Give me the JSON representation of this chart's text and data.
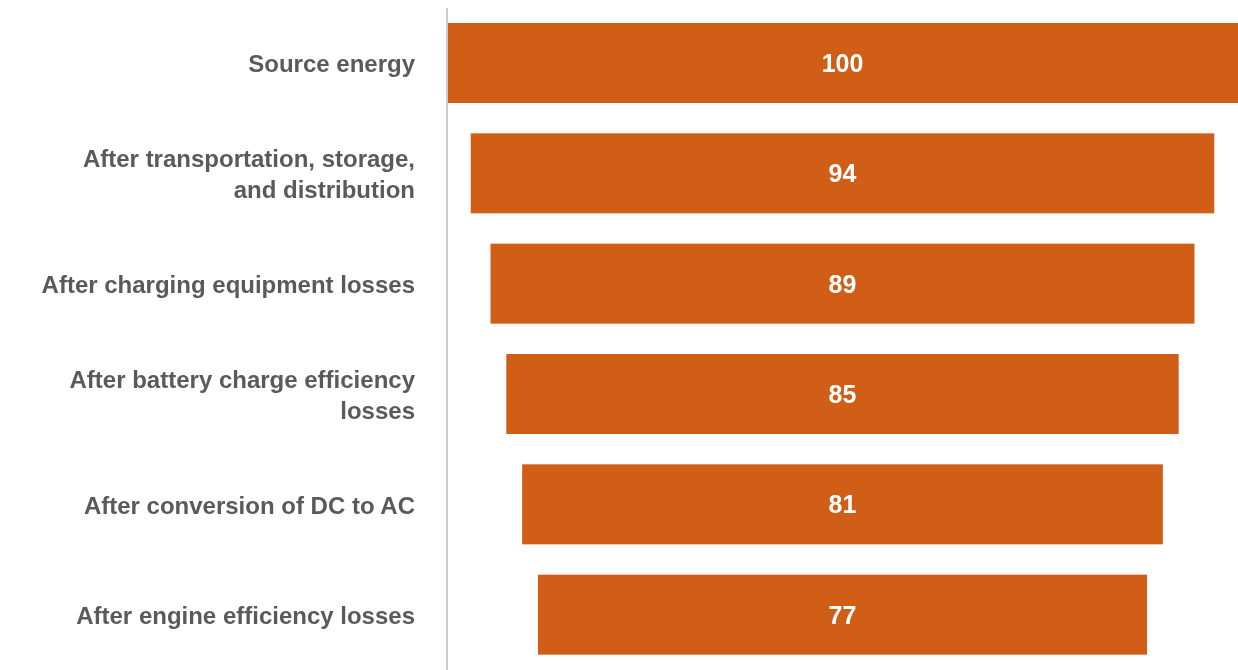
{
  "chart_data": {
    "type": "other",
    "categories": [
      "Source energy",
      "After transportation, storage, and distribution",
      "After charging equipment losses",
      "After battery charge efficiency losses",
      "After conversion of DC to AC",
      "After engine efficiency losses"
    ],
    "values": [
      100,
      94,
      89,
      85,
      81,
      77
    ],
    "color": "#d05e16",
    "data_labels": true
  }
}
